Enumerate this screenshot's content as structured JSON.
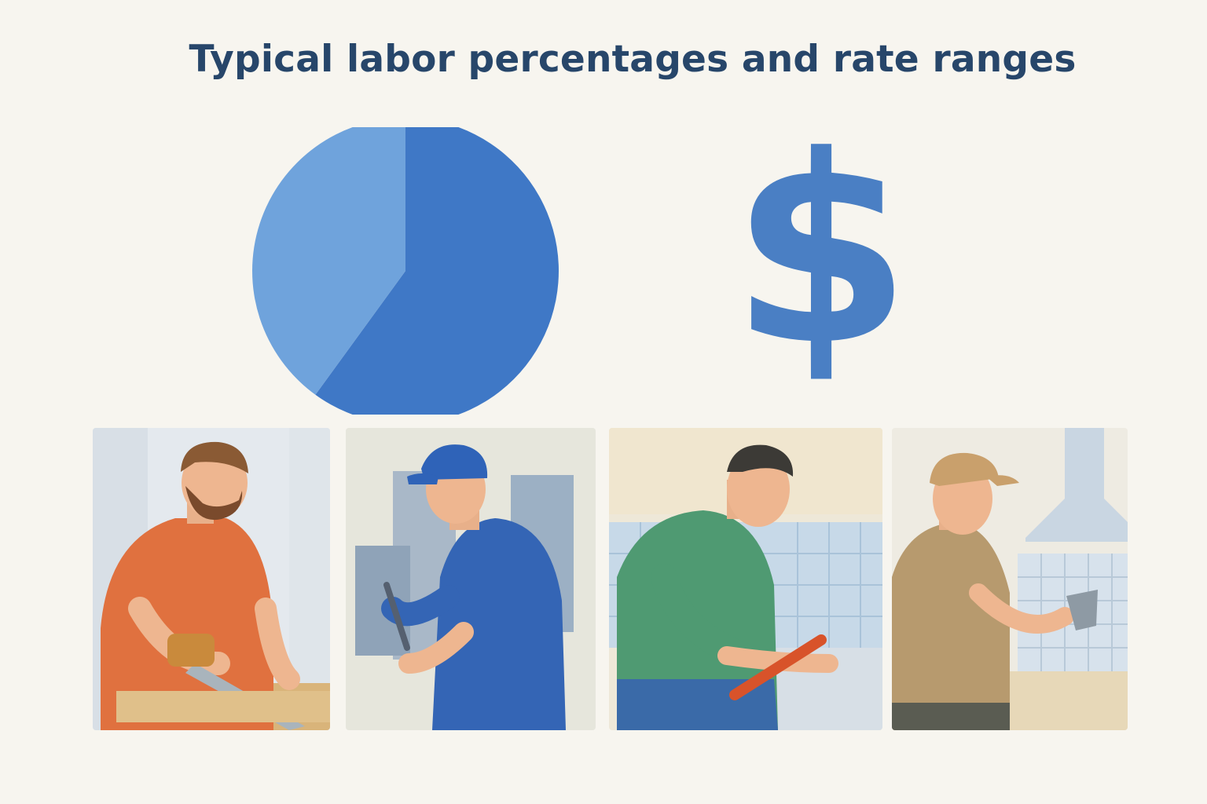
{
  "title": "Typical labor percentages and rate ranges",
  "colors": {
    "title": "#27466a",
    "pie_light": "#6fa3dc",
    "pie_dark": "#3f78c6",
    "dollar": "#4a7fc4",
    "background": "#f7f5ef"
  },
  "pie": {
    "slices": [
      {
        "share": 0.6
      },
      {
        "share": 0.4
      }
    ]
  },
  "dollar_symbol": "$",
  "panels": [
    {
      "trade": "carpenter",
      "shirt": "#e0713f",
      "tool": "saw"
    },
    {
      "trade": "electrician",
      "shirt": "#3465b5",
      "tool": "screwdriver"
    },
    {
      "trade": "plumber",
      "shirt": "#4f9a72",
      "tool": "pipe-wrench"
    },
    {
      "trade": "tile-installer",
      "shirt": "#b79a6e",
      "tool": "trowel"
    }
  ]
}
